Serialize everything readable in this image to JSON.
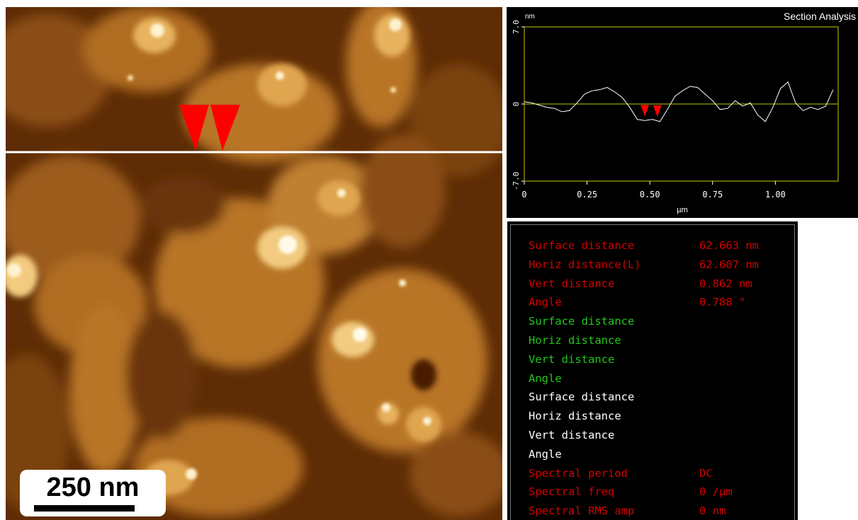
{
  "section_analysis": {
    "title": "Section Analysis",
    "y_unit": "nm",
    "x_unit": "µm",
    "y_ticks": [
      "7.0",
      "0",
      "-7.0"
    ],
    "x_ticks": [
      "0",
      "0.25",
      "0.50",
      "0.75",
      "1.00"
    ]
  },
  "chart_data": {
    "type": "line",
    "xlabel": "µm",
    "ylabel": "nm",
    "xlim": [
      0,
      1.25
    ],
    "ylim": [
      -7.0,
      7.0
    ],
    "grid": false,
    "series": [
      {
        "x": [
          0.0,
          0.03,
          0.06,
          0.09,
          0.12,
          0.15,
          0.18,
          0.21,
          0.24,
          0.27,
          0.3,
          0.33,
          0.36,
          0.39,
          0.42,
          0.45,
          0.48,
          0.51,
          0.54,
          0.57,
          0.6,
          0.63,
          0.66,
          0.69,
          0.72,
          0.75,
          0.78,
          0.81,
          0.84,
          0.87,
          0.9,
          0.93,
          0.96,
          0.99,
          1.02,
          1.05,
          1.08,
          1.11,
          1.14,
          1.17,
          1.2,
          1.23
        ],
        "y": [
          0.2,
          0.1,
          -0.1,
          -0.3,
          -0.4,
          -0.7,
          -0.6,
          0.1,
          0.9,
          1.2,
          1.3,
          1.5,
          1.1,
          0.6,
          -0.3,
          -1.4,
          -1.5,
          -1.4,
          -1.6,
          -0.5,
          0.7,
          1.2,
          1.6,
          1.5,
          0.9,
          0.3,
          -0.5,
          -0.4,
          0.3,
          -0.2,
          0.1,
          -1.0,
          -1.6,
          -0.3,
          1.4,
          2.0,
          0.1,
          -0.6,
          -0.3,
          -0.5,
          -0.2,
          1.3
        ]
      }
    ],
    "cursors": [
      {
        "x": 0.48,
        "color": "#ff0000"
      },
      {
        "x": 0.53,
        "color": "#ff0000"
      }
    ]
  },
  "measurements": [
    {
      "label": "Surface distance",
      "value": "62.663 nm",
      "color": "red"
    },
    {
      "label": "Horiz distance(L)",
      "value": "62.607 nm",
      "color": "red"
    },
    {
      "label": "Vert distance",
      "value": "0.862 nm",
      "color": "red"
    },
    {
      "label": "Angle",
      "value": "0.788 °",
      "color": "red"
    },
    {
      "label": "Surface distance",
      "value": "",
      "color": "green"
    },
    {
      "label": "Horiz distance",
      "value": "",
      "color": "green"
    },
    {
      "label": "Vert distance",
      "value": "",
      "color": "green"
    },
    {
      "label": "Angle",
      "value": "",
      "color": "green"
    },
    {
      "label": "Surface distance",
      "value": "",
      "color": "white"
    },
    {
      "label": "Horiz distance",
      "value": "",
      "color": "white"
    },
    {
      "label": "Vert distance",
      "value": "",
      "color": "white"
    },
    {
      "label": "Angle",
      "value": "",
      "color": "white"
    },
    {
      "label": "Spectral period",
      "value": "DC",
      "color": "red"
    },
    {
      "label": "Spectral freq",
      "value": "0 /µm",
      "color": "red"
    },
    {
      "label": "Spectral RMS amp",
      "value": "0 nm",
      "color": "red"
    }
  ],
  "scale_bar": {
    "label": "250 nm"
  },
  "colors": {
    "cursor": "#ff0000",
    "plot_frame": "#c8c800",
    "section_line": "#ffffff"
  }
}
